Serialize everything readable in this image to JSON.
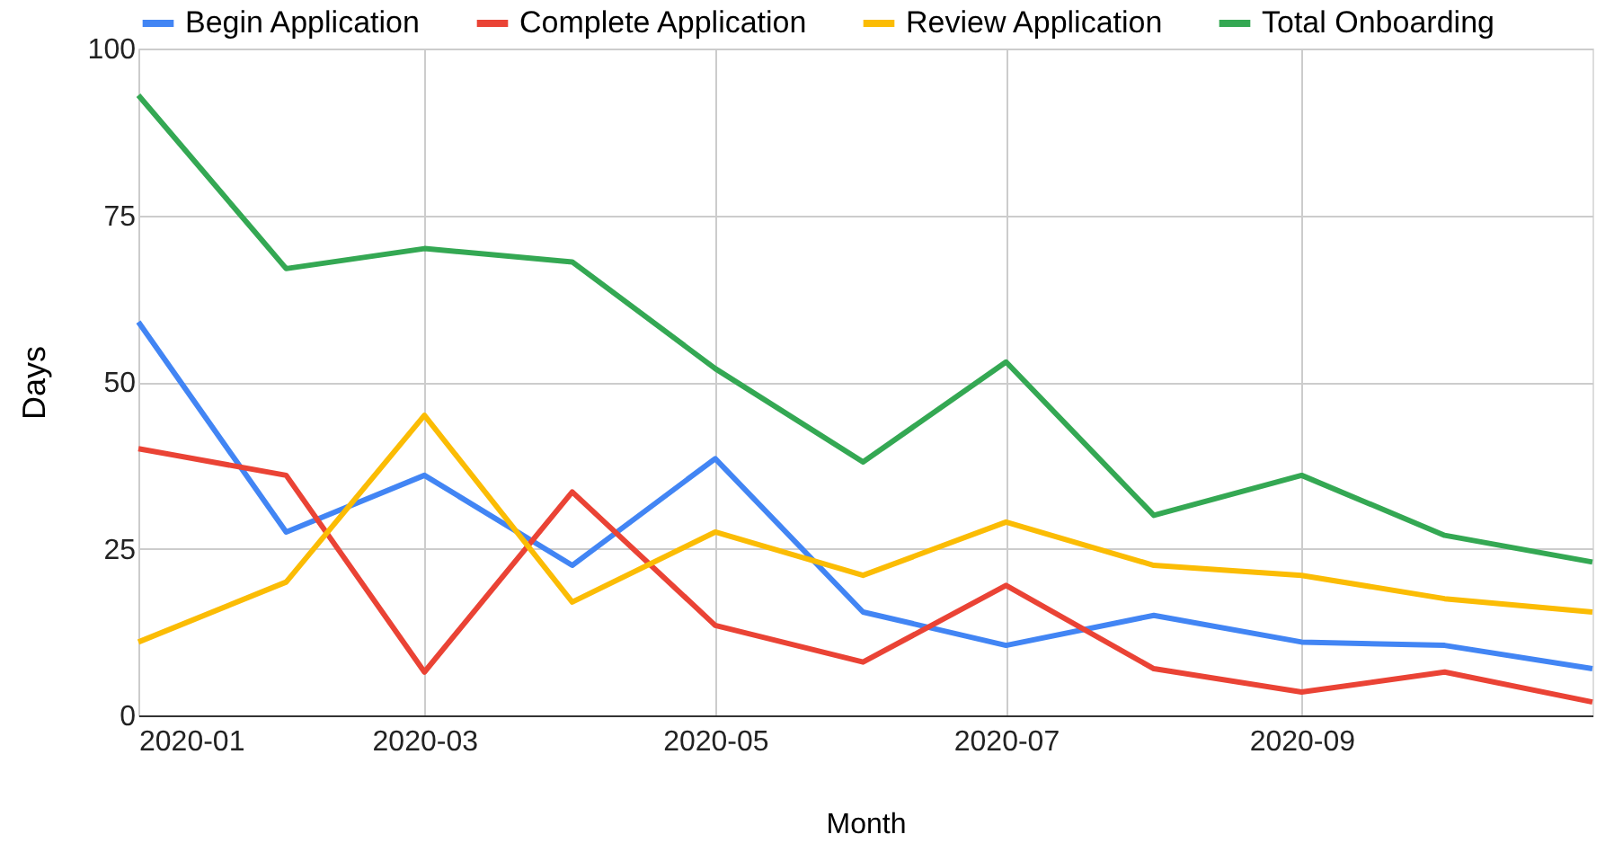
{
  "chart_data": {
    "type": "line",
    "xlabel": "Month",
    "ylabel": "Days",
    "x": [
      "2020-01",
      "2020-02",
      "2020-03",
      "2020-04",
      "2020-05",
      "2020-06",
      "2020-07",
      "2020-08",
      "2020-09",
      "2020-10",
      "2020-11"
    ],
    "series": [
      {
        "name": "Begin Application",
        "color": "#4285f4",
        "values": [
          59,
          27.5,
          36,
          22.5,
          38.5,
          15.5,
          10.5,
          15,
          11,
          10.5,
          7
        ]
      },
      {
        "name": "Complete Application",
        "color": "#ea4335",
        "values": [
          40,
          36,
          6.5,
          33.5,
          13.5,
          8,
          19.5,
          7,
          3.5,
          6.5,
          2
        ]
      },
      {
        "name": "Review Application",
        "color": "#fbbc04",
        "values": [
          11,
          20,
          45,
          17,
          27.5,
          21,
          29,
          22.5,
          21,
          17.5,
          15.5
        ]
      },
      {
        "name": "Total Onboarding",
        "color": "#34a853",
        "values": [
          93,
          67,
          70,
          68,
          52,
          38,
          53,
          30,
          36,
          27,
          23
        ]
      }
    ],
    "xlim": [
      "2020-01",
      "2020-11"
    ],
    "xticks": [
      "2020-01",
      "2020-03",
      "2020-05",
      "2020-07",
      "2020-09"
    ],
    "ylim": [
      0,
      100
    ],
    "yticks": [
      0,
      25,
      50,
      75,
      100
    ],
    "grid": true,
    "legend": "top",
    "marker": "none",
    "line_style": "solid"
  }
}
